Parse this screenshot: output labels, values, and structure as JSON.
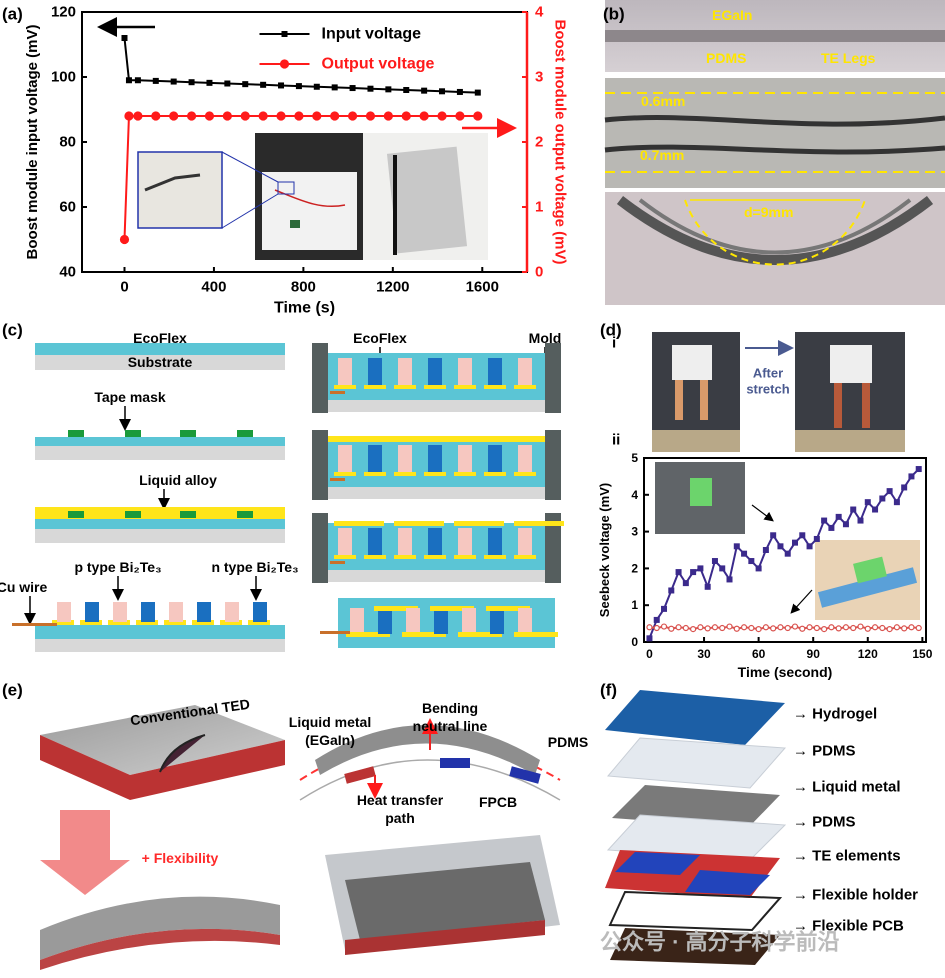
{
  "panel_labels": [
    "(a)",
    "(b)",
    "(c)",
    "(d)",
    "(e)",
    "(f)"
  ],
  "chart_data": [
    {
      "type": "line",
      "xlabel": "Time (s)",
      "ylabel": "Boost module input voltage (mV)",
      "y2label": "Boost module output voltage (mV)",
      "x": [
        0,
        20,
        60,
        140,
        220,
        300,
        380,
        460,
        540,
        620,
        700,
        780,
        860,
        940,
        1020,
        1100,
        1180,
        1260,
        1340,
        1420,
        1500,
        1580
      ],
      "series": [
        {
          "name": "Input voltage",
          "color": "#000000",
          "marker": "square",
          "values": [
            112,
            99,
            99,
            98.8,
            98.6,
            98.4,
            98.2,
            98,
            97.8,
            97.6,
            97.4,
            97.2,
            97,
            96.8,
            96.6,
            96.4,
            96.2,
            96,
            95.8,
            95.6,
            95.4,
            95.2
          ]
        },
        {
          "name": "Output voltage",
          "color": "#ff1a1a",
          "marker": "circle",
          "axis": "y2",
          "values": [
            0.5,
            2.4,
            2.4,
            2.4,
            2.4,
            2.4,
            2.4,
            2.4,
            2.4,
            2.4,
            2.4,
            2.4,
            2.4,
            2.4,
            2.4,
            2.4,
            2.4,
            2.4,
            2.4,
            2.4,
            2.4,
            2.4
          ]
        }
      ],
      "xlim": [
        -190,
        1800
      ],
      "xticks": [
        0,
        400,
        800,
        1200,
        1600
      ],
      "ylim": [
        40,
        120
      ],
      "yticks": [
        40,
        60,
        80,
        100,
        120
      ],
      "y2lim": [
        0,
        4
      ],
      "y2ticks": [
        0,
        1,
        2,
        3,
        4
      ],
      "legend": "upper center"
    },
    {
      "type": "line",
      "xlabel": "Time (second)",
      "ylabel": "Seebeck voltage (mV)",
      "x": [
        0,
        4,
        8,
        12,
        16,
        20,
        24,
        28,
        32,
        36,
        40,
        44,
        48,
        52,
        56,
        60,
        64,
        68,
        72,
        76,
        80,
        84,
        88,
        92,
        96,
        100,
        104,
        108,
        112,
        116,
        120,
        124,
        128,
        132,
        136,
        140,
        144,
        148
      ],
      "series": [
        {
          "color": "#3b2a8c",
          "marker": "square",
          "values": [
            0.1,
            0.6,
            0.9,
            1.4,
            1.9,
            1.6,
            1.9,
            2.0,
            1.5,
            2.2,
            2.0,
            1.7,
            2.6,
            2.4,
            2.2,
            2.0,
            2.5,
            2.9,
            2.6,
            2.4,
            2.7,
            2.9,
            2.6,
            2.8,
            3.3,
            3.1,
            3.4,
            3.2,
            3.6,
            3.3,
            3.8,
            3.6,
            3.9,
            4.1,
            3.8,
            4.2,
            4.5,
            4.7
          ]
        },
        {
          "color": "#d9534f",
          "marker": "open-circle",
          "values": [
            0.4,
            0.38,
            0.42,
            0.36,
            0.4,
            0.38,
            0.35,
            0.4,
            0.37,
            0.4,
            0.38,
            0.42,
            0.36,
            0.4,
            0.38,
            0.35,
            0.4,
            0.37,
            0.4,
            0.38,
            0.42,
            0.36,
            0.4,
            0.38,
            0.35,
            0.4,
            0.37,
            0.4,
            0.38,
            0.42,
            0.36,
            0.4,
            0.38,
            0.35,
            0.4,
            0.37,
            0.4,
            0.38
          ]
        }
      ],
      "xlim": [
        -3,
        152
      ],
      "xticks": [
        0,
        30,
        60,
        90,
        120,
        150
      ],
      "ylim": [
        0,
        5
      ],
      "yticks": [
        0,
        1,
        2,
        3,
        4,
        5
      ]
    }
  ],
  "panel_b": {
    "labels": [
      "EGaIn",
      "PDMS",
      "TE Legs",
      "0.6mm",
      "0.7mm",
      "d=9mm"
    ]
  },
  "panel_c": {
    "labels": [
      "EcoFlex",
      "Substrate",
      "Tape mask",
      "Liquid alloy",
      "p type Bi₂Te₃",
      "n type Bi₂Te₃",
      "Cu wire",
      "EcoFlex",
      "Mold"
    ]
  },
  "panel_d": {
    "labels": [
      "i",
      "After",
      "stretch",
      "ii"
    ]
  },
  "panel_e": {
    "labels": [
      "Conventional TED",
      "+ Flexibility",
      "Liquid metal",
      "(EGaIn)",
      "Bending",
      "neutral line",
      "PDMS",
      "Heat transfer",
      "path",
      "FPCB"
    ]
  },
  "panel_f": {
    "layers": [
      "→ Hydrogel",
      "→ PDMS",
      "→ Liquid metal",
      "→ PDMS",
      "→ TE elements",
      "→ Flexible holder",
      "→ Flexible PCB"
    ]
  },
  "watermark": "公众号 · 高分子科学前沿"
}
